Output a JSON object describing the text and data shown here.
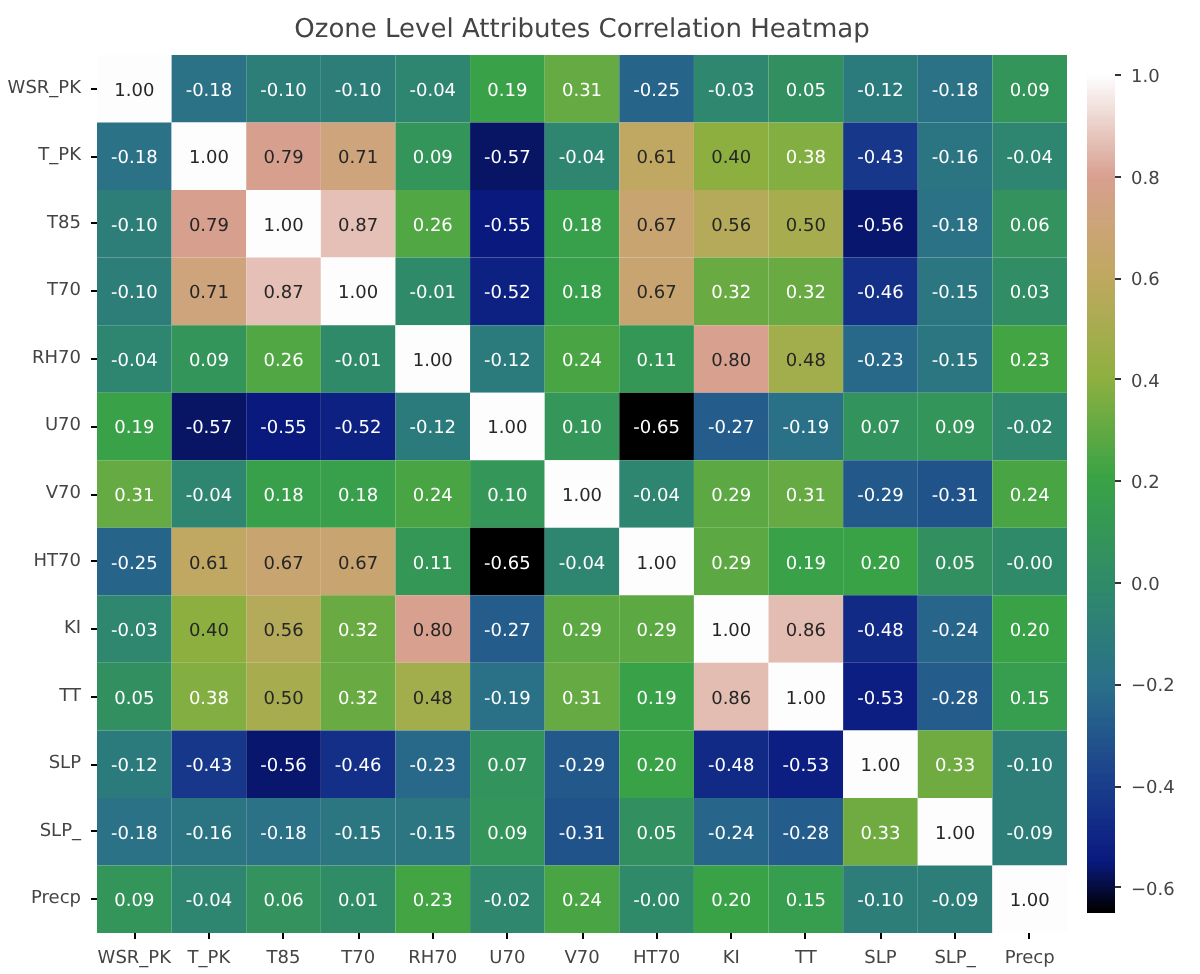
{
  "chart_data": {
    "type": "heatmap",
    "title": "Ozone Level Attributes Correlation Heatmap",
    "categories": [
      "WSR_PK",
      "T_PK",
      "T85",
      "T70",
      "RH70",
      "U70",
      "V70",
      "HT70",
      "KI",
      "TT",
      "SLP",
      "SLP_",
      "Precp"
    ],
    "y_categories": [
      "WSR_PK",
      "T_PK",
      "T85",
      "T70",
      "RH70",
      "U70",
      "V70",
      "HT70",
      "KI",
      "TT",
      "SLP",
      "SLP_",
      "Precp"
    ],
    "cells": [
      [
        1.0,
        -0.18,
        -0.1,
        -0.1,
        -0.04,
        0.19,
        0.31,
        -0.25,
        -0.03,
        0.05,
        -0.12,
        -0.18,
        0.09
      ],
      [
        -0.18,
        1.0,
        0.79,
        0.71,
        0.09,
        -0.57,
        -0.04,
        0.61,
        0.4,
        0.38,
        -0.43,
        -0.16,
        -0.04
      ],
      [
        -0.1,
        0.79,
        1.0,
        0.87,
        0.26,
        -0.55,
        0.18,
        0.67,
        0.56,
        0.5,
        -0.56,
        -0.18,
        0.06
      ],
      [
        -0.1,
        0.71,
        0.87,
        1.0,
        -0.01,
        -0.52,
        0.18,
        0.67,
        0.32,
        0.32,
        -0.46,
        -0.15,
        0.03
      ],
      [
        -0.04,
        0.09,
        0.26,
        -0.01,
        1.0,
        -0.12,
        0.24,
        0.11,
        0.8,
        0.48,
        -0.23,
        -0.15,
        0.23
      ],
      [
        0.19,
        -0.57,
        -0.55,
        -0.52,
        -0.12,
        1.0,
        0.1,
        -0.65,
        -0.27,
        -0.19,
        0.07,
        0.09,
        -0.02
      ],
      [
        0.31,
        -0.04,
        0.18,
        0.18,
        0.24,
        0.1,
        1.0,
        -0.04,
        0.29,
        0.31,
        -0.29,
        -0.31,
        0.24
      ],
      [
        -0.25,
        0.61,
        0.67,
        0.67,
        0.11,
        -0.65,
        -0.04,
        1.0,
        0.29,
        0.19,
        0.2,
        0.05,
        -0.0
      ],
      [
        -0.03,
        0.4,
        0.56,
        0.32,
        0.8,
        -0.27,
        0.29,
        0.29,
        1.0,
        0.86,
        -0.48,
        -0.24,
        0.2
      ],
      [
        0.05,
        0.38,
        0.5,
        0.32,
        0.48,
        -0.19,
        0.31,
        0.19,
        0.86,
        1.0,
        -0.53,
        -0.28,
        0.15
      ],
      [
        -0.12,
        -0.43,
        -0.56,
        -0.46,
        -0.23,
        0.07,
        -0.29,
        0.2,
        -0.48,
        -0.53,
        1.0,
        0.33,
        -0.1
      ],
      [
        -0.18,
        -0.16,
        -0.18,
        -0.15,
        -0.15,
        0.09,
        -0.31,
        0.05,
        -0.24,
        -0.28,
        0.33,
        1.0,
        -0.09
      ],
      [
        0.09,
        -0.04,
        0.06,
        0.01,
        0.23,
        -0.02,
        0.24,
        -0.0,
        0.2,
        0.15,
        -0.1,
        -0.09,
        1.0
      ]
    ],
    "cell_labels": [
      [
        "1.00",
        "-0.18",
        "-0.10",
        "-0.10",
        "-0.04",
        "0.19",
        "0.31",
        "-0.25",
        "-0.03",
        "0.05",
        "-0.12",
        "-0.18",
        "0.09"
      ],
      [
        "-0.18",
        "1.00",
        "0.79",
        "0.71",
        "0.09",
        "-0.57",
        "-0.04",
        "0.61",
        "0.40",
        "0.38",
        "-0.43",
        "-0.16",
        "-0.04"
      ],
      [
        "-0.10",
        "0.79",
        "1.00",
        "0.87",
        "0.26",
        "-0.55",
        "0.18",
        "0.67",
        "0.56",
        "0.50",
        "-0.56",
        "-0.18",
        "0.06"
      ],
      [
        "-0.10",
        "0.71",
        "0.87",
        "1.00",
        "-0.01",
        "-0.52",
        "0.18",
        "0.67",
        "0.32",
        "0.32",
        "-0.46",
        "-0.15",
        "0.03"
      ],
      [
        "-0.04",
        "0.09",
        "0.26",
        "-0.01",
        "1.00",
        "-0.12",
        "0.24",
        "0.11",
        "0.80",
        "0.48",
        "-0.23",
        "-0.15",
        "0.23"
      ],
      [
        "0.19",
        "-0.57",
        "-0.55",
        "-0.52",
        "-0.12",
        "1.00",
        "0.10",
        "-0.65",
        "-0.27",
        "-0.19",
        "0.07",
        "0.09",
        "-0.02"
      ],
      [
        "0.31",
        "-0.04",
        "0.18",
        "0.18",
        "0.24",
        "0.10",
        "1.00",
        "-0.04",
        "0.29",
        "0.31",
        "-0.29",
        "-0.31",
        "0.24"
      ],
      [
        "-0.25",
        "0.61",
        "0.67",
        "0.67",
        "0.11",
        "-0.65",
        "-0.04",
        "1.00",
        "0.29",
        "0.19",
        "0.20",
        "0.05",
        "-0.00"
      ],
      [
        "-0.03",
        "0.40",
        "0.56",
        "0.32",
        "0.80",
        "-0.27",
        "0.29",
        "0.29",
        "1.00",
        "0.86",
        "-0.48",
        "-0.24",
        "0.20"
      ],
      [
        "0.05",
        "0.38",
        "0.50",
        "0.32",
        "0.48",
        "-0.19",
        "0.31",
        "0.19",
        "0.86",
        "1.00",
        "-0.53",
        "-0.28",
        "0.15"
      ],
      [
        "-0.12",
        "-0.43",
        "-0.56",
        "-0.46",
        "-0.23",
        "0.07",
        "-0.29",
        "0.20",
        "-0.48",
        "-0.53",
        "1.00",
        "0.33",
        "-0.10"
      ],
      [
        "-0.18",
        "-0.16",
        "-0.18",
        "-0.15",
        "-0.15",
        "0.09",
        "-0.31",
        "0.05",
        "-0.24",
        "-0.28",
        "0.33",
        "1.00",
        "-0.09"
      ],
      [
        "0.09",
        "-0.04",
        "0.06",
        "0.01",
        "0.23",
        "-0.02",
        "0.24",
        "-0.00",
        "0.20",
        "0.15",
        "-0.10",
        "-0.09",
        "1.00"
      ]
    ],
    "clim": [
      -0.65,
      1.0
    ],
    "cticks": [
      {
        "value": -0.6,
        "label": "−0.6"
      },
      {
        "value": -0.4,
        "label": "−0.4"
      },
      {
        "value": -0.2,
        "label": "−0.2"
      },
      {
        "value": 0.0,
        "label": "0.0"
      },
      {
        "value": 0.2,
        "label": "0.2"
      },
      {
        "value": 0.4,
        "label": "0.4"
      },
      {
        "value": 0.6,
        "label": "0.6"
      },
      {
        "value": 0.8,
        "label": "0.8"
      },
      {
        "value": 1.0,
        "label": "1.0"
      }
    ]
  }
}
